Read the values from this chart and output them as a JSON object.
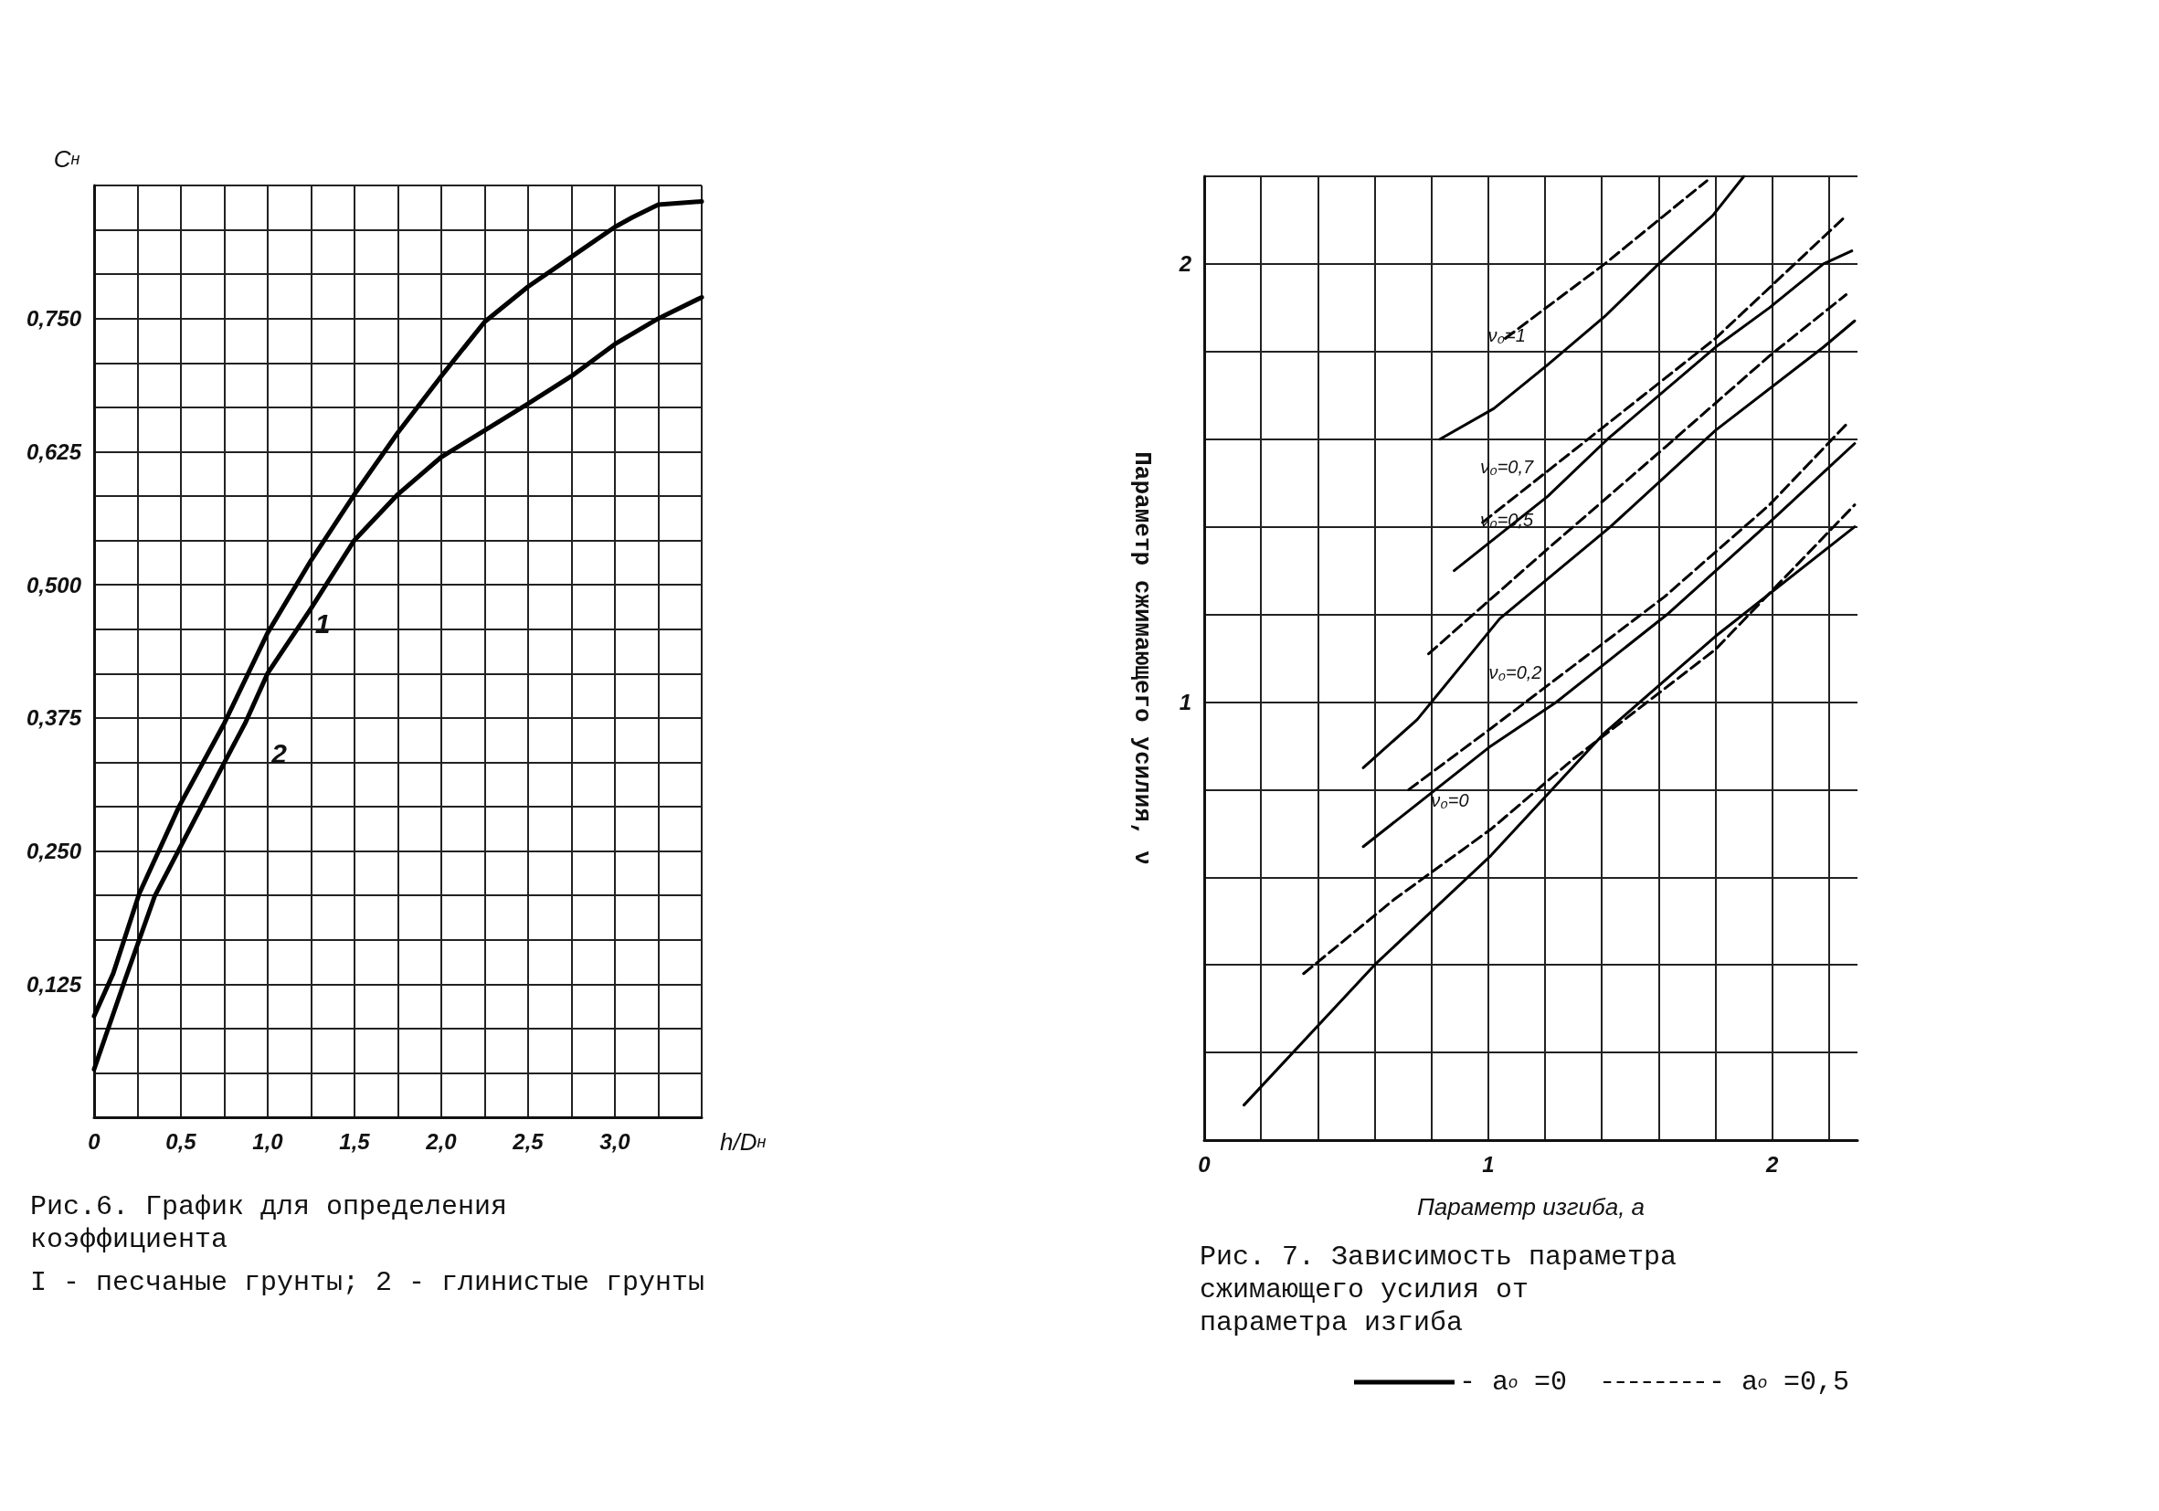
{
  "chart_data": [
    {
      "type": "line",
      "title": "Рис.6. График для определения коэффициента",
      "subtitle": "I - песчаные грунты; 2 - глинистые грунты",
      "xlabel": "h/D$_{н}$",
      "ylabel": "C$_{н}$",
      "xlim": [
        0,
        3.5
      ],
      "ylim": [
        0,
        0.875
      ],
      "xticks": [
        {
          "value": 0,
          "label": "0"
        },
        {
          "value": 0.25,
          "label": null
        },
        {
          "value": 0.5,
          "label": "0,5"
        },
        {
          "value": 0.75,
          "label": null
        },
        {
          "value": 1,
          "label": "1,0"
        },
        {
          "value": 1.25,
          "label": null
        },
        {
          "value": 1.5,
          "label": "1,5"
        },
        {
          "value": 1.75,
          "label": null
        },
        {
          "value": 2,
          "label": "2,0"
        },
        {
          "value": 2.25,
          "label": null
        },
        {
          "value": 2.5,
          "label": "2,5"
        },
        {
          "value": 2.75,
          "label": null
        },
        {
          "value": 3,
          "label": "3,0"
        },
        {
          "value": 3.25,
          "label": null
        },
        {
          "value": 3.5,
          "label": null
        }
      ],
      "yticks": [
        {
          "value": 0.04167,
          "label": null
        },
        {
          "value": 0.08333,
          "label": null
        },
        {
          "value": 0.125,
          "label": "0,125"
        },
        {
          "value": 0.16667,
          "label": null
        },
        {
          "value": 0.20833,
          "label": null
        },
        {
          "value": 0.25,
          "label": "0,250"
        },
        {
          "value": 0.29167,
          "label": null
        },
        {
          "value": 0.33333,
          "label": null
        },
        {
          "value": 0.375,
          "label": "0,375"
        },
        {
          "value": 0.41667,
          "label": null
        },
        {
          "value": 0.45833,
          "label": null
        },
        {
          "value": 0.5,
          "label": "0,500"
        },
        {
          "value": 0.54167,
          "label": null
        },
        {
          "value": 0.58333,
          "label": null
        },
        {
          "value": 0.625,
          "label": "0,625"
        },
        {
          "value": 0.66667,
          "label": null
        },
        {
          "value": 0.70833,
          "label": null
        },
        {
          "value": 0.75,
          "label": "0,750"
        },
        {
          "value": 0.79167,
          "label": null
        },
        {
          "value": 0.83333,
          "label": null
        },
        {
          "value": 0.875,
          "label": null
        }
      ],
      "grid": true,
      "marker": "none",
      "line_style": "solid",
      "annotations": [
        {
          "text": "1",
          "x": 1.0,
          "y": 0.455
        },
        {
          "text": "2",
          "x": 0.75,
          "y": 0.333
        }
      ],
      "series": [
        {
          "color": "#000000",
          "x": [
            0,
            0.11,
            0.26,
            0.49,
            0.75,
            1.0,
            1.25,
            1.5,
            1.75,
            2.0,
            2.25,
            2.5,
            2.75,
            3.0,
            3.1,
            3.25,
            3.5
          ],
          "values": [
            0.095,
            0.135,
            0.21,
            0.292,
            0.37,
            0.455,
            0.523,
            0.585,
            0.643,
            0.696,
            0.747,
            0.78,
            0.808,
            0.836,
            0.845,
            0.857,
            0.86
          ]
        },
        {
          "color": "#000000",
          "x": [
            0,
            0.18,
            0.35,
            0.75,
            0.87,
            1.0,
            1.25,
            1.5,
            1.75,
            2.0,
            2.25,
            2.5,
            2.75,
            3.0,
            3.25,
            3.5
          ],
          "values": [
            0.045,
            0.13,
            0.208,
            0.333,
            0.37,
            0.417,
            0.478,
            0.542,
            0.585,
            0.62,
            0.645,
            0.67,
            0.696,
            0.726,
            0.75,
            0.77
          ]
        }
      ]
    },
    {
      "type": "line",
      "title": "Рис. 7. Зависимость параметра сжимающего усилия от параметра изгиба",
      "xlabel": "Параметр изгиба, a",
      "ylabel": "Параметр сжимающего усилия, ν",
      "xlim": [
        0,
        2.3
      ],
      "ylim": [
        0,
        2.2
      ],
      "xticks": [
        {
          "value": 0,
          "label": "0"
        },
        {
          "value": 0.2,
          "label": null
        },
        {
          "value": 0.4,
          "label": null
        },
        {
          "value": 0.6,
          "label": null
        },
        {
          "value": 0.8,
          "label": null
        },
        {
          "value": 1,
          "label": "1"
        },
        {
          "value": 1.2,
          "label": null
        },
        {
          "value": 1.4,
          "label": null
        },
        {
          "value": 1.6,
          "label": null
        },
        {
          "value": 1.8,
          "label": null
        },
        {
          "value": 2,
          "label": "2"
        },
        {
          "value": 2.2,
          "label": null
        }
      ],
      "yticks": [
        {
          "value": 0.2,
          "label": null
        },
        {
          "value": 0.4,
          "label": null
        },
        {
          "value": 0.6,
          "label": null
        },
        {
          "value": 0.8,
          "label": null
        },
        {
          "value": 1,
          "label": "1"
        },
        {
          "value": 1.2,
          "label": null
        },
        {
          "value": 1.4,
          "label": null
        },
        {
          "value": 1.6,
          "label": null
        },
        {
          "value": 1.8,
          "label": null
        },
        {
          "value": 2,
          "label": "2"
        },
        {
          "value": 2.2,
          "label": null
        }
      ],
      "grid": true,
      "marker": "none",
      "legend": "bottom",
      "annotations": [
        {
          "text": "ν₀=1",
          "x": 1.21,
          "y": 1.77
        },
        {
          "text": "ν₀=0,7",
          "x": 1.21,
          "y": 1.47
        },
        {
          "text": "ν₀=0,5",
          "x": 1.21,
          "y": 1.35
        },
        {
          "text": "ν₀=0,2",
          "x": 1.24,
          "y": 1.0
        },
        {
          "text": "ν₀=0",
          "x": 1.01,
          "y": 0.71
        }
      ],
      "series": [
        {
          "name": "- a$_{o}$ =0",
          "color": "#000000",
          "line_style": "solid",
          "x": [
            0.83,
            1.02,
            1.21,
            1.41,
            1.6,
            1.79,
            1.9
          ],
          "values": [
            1.6,
            1.67,
            1.77,
            1.88,
            2.0,
            2.11,
            2.2
          ]
        },
        {
          "name": "- a$_{o}$ =0,5",
          "color": "#000000",
          "line_style": "dashed",
          "x": [
            1.06,
            1.41,
            1.77
          ],
          "values": [
            1.83,
            2.0,
            2.19
          ]
        },
        {
          "color": "#000000",
          "line_style": "solid",
          "x": [
            0.88,
            1.21,
            1.42,
            1.8,
            1.99,
            2.18,
            2.28
          ],
          "values": [
            1.3,
            1.47,
            1.6,
            1.81,
            1.9,
            2.0,
            2.03
          ]
        },
        {
          "color": "#000000",
          "line_style": "dashed",
          "x": [
            0.98,
            1.41,
            1.8,
            2.26
          ],
          "values": [
            1.41,
            1.63,
            1.83,
            2.11
          ]
        },
        {
          "color": "#000000",
          "line_style": "solid",
          "x": [
            0.56,
            0.75,
            1.04,
            1.43,
            1.8,
            2.18,
            2.29
          ],
          "values": [
            0.85,
            0.96,
            1.19,
            1.4,
            1.62,
            1.81,
            1.87
          ]
        },
        {
          "color": "#000000",
          "line_style": "dashed",
          "x": [
            0.79,
            1.21,
            1.62,
            1.99,
            2.26
          ],
          "values": [
            1.11,
            1.35,
            1.58,
            1.79,
            1.93
          ]
        },
        {
          "color": "#000000",
          "line_style": "solid",
          "x": [
            0.56,
            1.01,
            1.24,
            1.63,
            1.99,
            2.29
          ],
          "values": [
            0.67,
            0.9,
            1.0,
            1.2,
            1.41,
            1.59
          ]
        },
        {
          "color": "#000000",
          "line_style": "dashed",
          "x": [
            0.72,
            1.01,
            1.62,
            1.99,
            2.27
          ],
          "values": [
            0.8,
            0.94,
            1.24,
            1.45,
            1.64
          ]
        },
        {
          "color": "#000000",
          "line_style": "solid",
          "x": [
            0.14,
            0.6,
            1.01,
            1.41,
            1.8,
            2.29
          ],
          "values": [
            0.08,
            0.4,
            0.65,
            0.93,
            1.15,
            1.4
          ]
        },
        {
          "color": "#000000",
          "line_style": "dashed",
          "x": [
            0.35,
            0.67,
            1.01,
            1.3,
            1.8,
            2.29
          ],
          "values": [
            0.38,
            0.55,
            0.71,
            0.87,
            1.12,
            1.45
          ]
        }
      ]
    }
  ]
}
